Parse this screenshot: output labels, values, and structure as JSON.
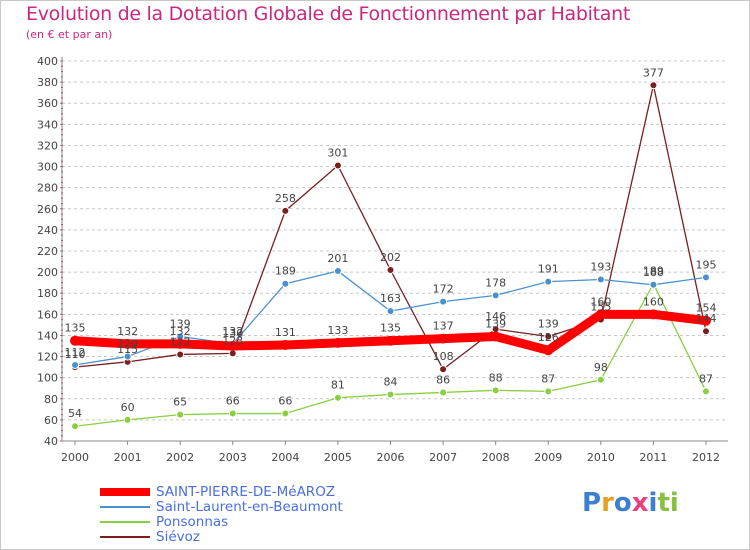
{
  "title": "Evolution de la Dotation Globale de Fonctionnement par Habitant",
  "subtitle": "(en € et par an)",
  "chart_data": {
    "type": "line",
    "title": "Evolution de la Dotation Globale de Fonctionnement par Habitant",
    "subtitle": "(en € et par an)",
    "xlabel": "",
    "ylabel": "",
    "ylim": [
      40,
      400
    ],
    "ytick_step": 20,
    "grid": "horizontal dashed",
    "categories": [
      "2000",
      "2001",
      "2002",
      "2003",
      "2004",
      "2005",
      "2006",
      "2007",
      "2008",
      "2009",
      "2010",
      "2011",
      "2012"
    ],
    "series": [
      {
        "name": "SAINT-PIERRE-DE-MéAROZ",
        "color": "#ff0000",
        "values": [
          135,
          132,
          132,
          130,
          131,
          133,
          135,
          137,
          139,
          126,
          160,
          160,
          154
        ]
      },
      {
        "name": "Saint-Laurent-en-Beaumont",
        "color": "#4a90d0",
        "values": [
          112,
          120,
          139,
          132,
          189,
          201,
          163,
          172,
          178,
          191,
          193,
          188,
          195
        ]
      },
      {
        "name": "Ponsonnas",
        "color": "#88d040",
        "values": [
          54,
          60,
          65,
          66,
          66,
          81,
          84,
          86,
          88,
          87,
          98,
          189,
          87
        ]
      },
      {
        "name": "Siévoz",
        "color": "#7a1e1e",
        "values": [
          110,
          115,
          122,
          123,
          258,
          301,
          202,
          108,
          146,
          139,
          155,
          377,
          144
        ]
      }
    ]
  },
  "legend": [
    {
      "label": "SAINT-PIERRE-DE-MéAROZ",
      "color": "#ff0000",
      "text_color": "#4a6ee0"
    },
    {
      "label": "Saint-Laurent-en-Beaumont",
      "color": "#4a90d0",
      "text_color": "#4a6ee0"
    },
    {
      "label": "Ponsonnas",
      "color": "#88d040",
      "text_color": "#4a6ee0"
    },
    {
      "label": "Siévoz",
      "color": "#7a1e1e",
      "text_color": "#4a6ee0"
    }
  ],
  "logo": {
    "text": "Proxiti",
    "colors": [
      "#3a7fd0",
      "#e8a020",
      "#3a7fd0",
      "#e84080",
      "#3a7fd0",
      "#88c040",
      "#88c040"
    ]
  }
}
